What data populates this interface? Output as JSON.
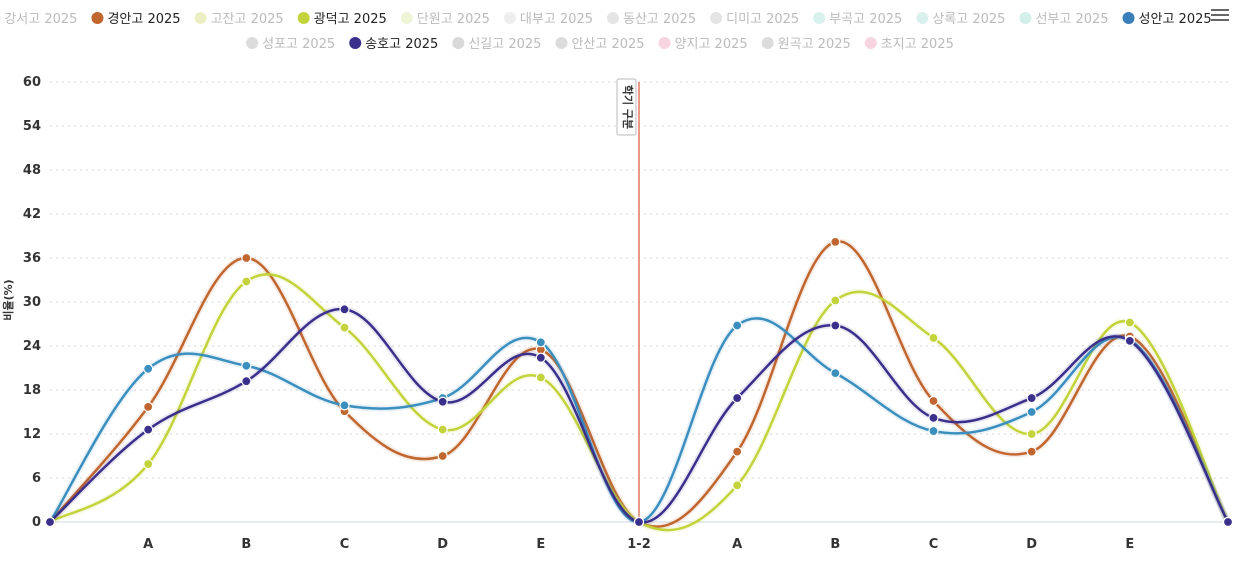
{
  "chart_data": {
    "type": "line",
    "title": "",
    "ylabel": "비율(%)",
    "xlabel": "",
    "ylim": [
      0,
      60
    ],
    "yticks": [
      0,
      6,
      12,
      18,
      24,
      30,
      36,
      42,
      48,
      54,
      60
    ],
    "categories": [
      "",
      "A",
      "B",
      "C",
      "D",
      "E",
      "1-2",
      "A",
      "B",
      "C",
      "D",
      "E",
      ""
    ],
    "divider": {
      "category_index": 6,
      "label": "학기 구분",
      "color": "#e07a5f"
    },
    "grid": "horizontal-dotted",
    "legend_position": "top",
    "legend": [
      {
        "name": "강서고 2025",
        "color": "#e8c9d3",
        "active": false
      },
      {
        "name": "경안고 2025",
        "color": "#c0662f",
        "active": true
      },
      {
        "name": "고잔고 2025",
        "color": "#ecefc4",
        "active": false
      },
      {
        "name": "광덕고 2025",
        "color": "#c3d33b",
        "active": true
      },
      {
        "name": "단원고 2025",
        "color": "#eef5d6",
        "active": false
      },
      {
        "name": "대부고 2025",
        "color": "#eeeeee",
        "active": false
      },
      {
        "name": "동산고 2025",
        "color": "#e5e5e5",
        "active": false
      },
      {
        "name": "디미고 2025",
        "color": "#e5e5e5",
        "active": false
      },
      {
        "name": "부곡고 2025",
        "color": "#d9f1ec",
        "active": false
      },
      {
        "name": "상록고 2025",
        "color": "#d9f1ec",
        "active": false
      },
      {
        "name": "선부고 2025",
        "color": "#d3efea",
        "active": false
      },
      {
        "name": "성안고 2025",
        "color": "#3a7fb8",
        "active": true
      },
      {
        "name": "성포고 2025",
        "color": "#dcdcdc",
        "active": false
      },
      {
        "name": "송호고 2025",
        "color": "#3b2f8c",
        "active": true
      },
      {
        "name": "신길고 2025",
        "color": "#d9d9d9",
        "active": false
      },
      {
        "name": "안산고 2025",
        "color": "#dcdcdc",
        "active": false
      },
      {
        "name": "양지고 2025",
        "color": "#f6d5e0",
        "active": false
      },
      {
        "name": "원곡고 2025",
        "color": "#dcdcdc",
        "active": false
      },
      {
        "name": "초지고 2025",
        "color": "#f6d5e0",
        "active": false
      }
    ],
    "series": [
      {
        "name": "경안고 2025",
        "color": "#c0662f",
        "values": [
          0,
          15.7,
          36,
          15.1,
          9,
          23.5,
          0,
          9.6,
          38.2,
          16.5,
          9.6,
          25.3,
          0
        ]
      },
      {
        "name": "광덕고 2025",
        "color": "#c3d33b",
        "values": [
          0,
          7.9,
          32.8,
          26.5,
          12.6,
          19.7,
          0,
          5,
          30.2,
          25.1,
          12,
          27.2,
          0
        ]
      },
      {
        "name": "성안고 2025",
        "color": "#3a8fbf",
        "values": [
          0,
          20.9,
          21.3,
          15.9,
          16.9,
          24.5,
          0,
          26.8,
          20.3,
          12.4,
          15,
          24.8,
          0
        ]
      },
      {
        "name": "송호고 2025",
        "color": "#3b2f8c",
        "values": [
          0,
          12.6,
          19.2,
          29,
          16.4,
          22.4,
          0,
          16.9,
          26.8,
          14.2,
          16.9,
          24.7,
          0
        ]
      }
    ]
  }
}
